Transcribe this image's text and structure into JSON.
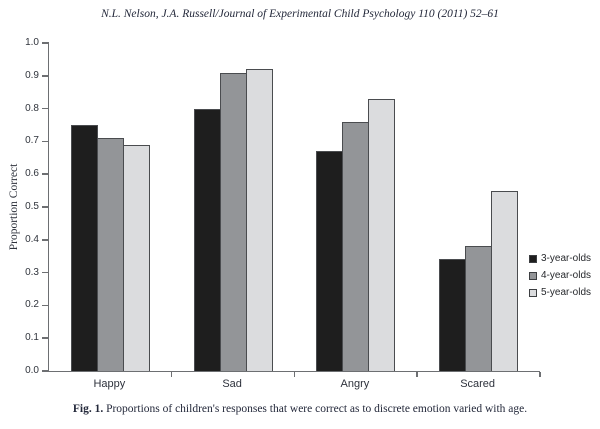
{
  "header": {
    "text": "N.L. Nelson, J.A. Russell/Journal of Experimental Child Psychology 110 (2011) 52–61"
  },
  "chart_data": {
    "type": "bar",
    "title": "",
    "xlabel": "",
    "ylabel": "Proportion Correct",
    "ylim": [
      0,
      1.0
    ],
    "ytick_labels": [
      "0.0",
      "0.1",
      "0.2",
      "0.3",
      "0.4",
      "0.5",
      "0.6",
      "0.7",
      "0.8",
      "0.9",
      "1.0"
    ],
    "categories": [
      "Happy",
      "Sad",
      "Angry",
      "Scared"
    ],
    "series": [
      {
        "name": "3-year-olds",
        "color": "#1e1e1e",
        "values": [
          0.75,
          0.8,
          0.67,
          0.34
        ]
      },
      {
        "name": "4-year-olds",
        "color": "#939598",
        "values": [
          0.71,
          0.91,
          0.76,
          0.38
        ]
      },
      {
        "name": "5-year-olds",
        "color": "#dbdcde",
        "values": [
          0.69,
          0.92,
          0.83,
          0.55
        ]
      }
    ],
    "legend_position": "right",
    "grid": false
  },
  "caption": {
    "label": "Fig. 1.",
    "text": "Proportions of children's responses that were correct as to discrete emotion varied with age."
  },
  "colors": {
    "axis": "#6d6f72",
    "bar_border": "#4a4c4f",
    "text": "#23283a"
  }
}
